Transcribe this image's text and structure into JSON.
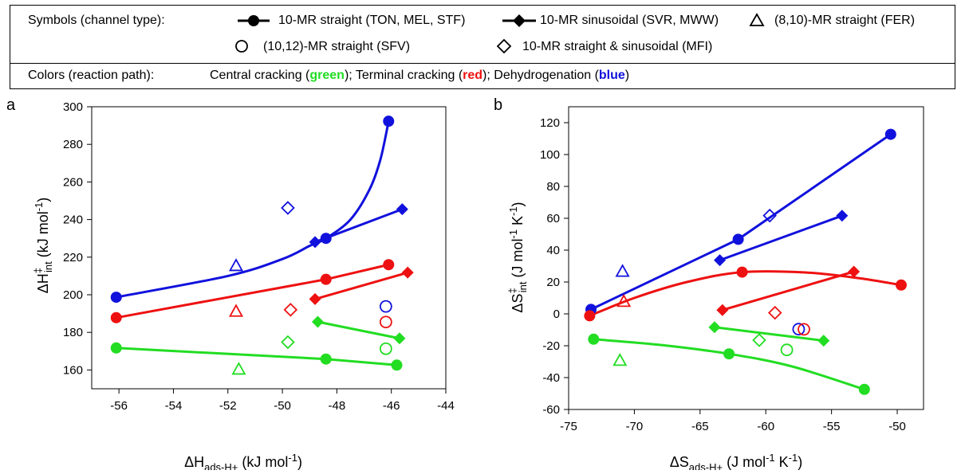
{
  "legend": {
    "symbols_label": "Symbols (channel type):",
    "symbols": [
      {
        "marker": "filled-circle-with-line",
        "label": "10-MR straight (TON, MEL, STF)"
      },
      {
        "marker": "filled-diamond-with-line",
        "label": "10-MR sinusoidal (SVR, MWW)"
      },
      {
        "marker": "open-triangle",
        "label": "(8,10)-MR straight (FER)"
      },
      {
        "marker": "open-circle",
        "label": "(10,12)-MR straight (SFV)"
      },
      {
        "marker": "open-diamond",
        "label": "10-MR straight & sinusoidal (MFI)"
      }
    ],
    "colors_label": "Colors (reaction path):",
    "colors_parts": {
      "p1": "Central cracking (",
      "green": "green",
      "p2": "); Terminal cracking (",
      "red": "red",
      "p3": "); Dehydrogenation (",
      "blue": "blue",
      "p4": ")"
    },
    "colors": {
      "green": "#22dd22",
      "red": "#ee1111",
      "blue": "#1111dd"
    }
  },
  "chart_data": [
    {
      "panel": "a",
      "type": "scatter",
      "ylabel": {
        "main": "ΔH",
        "sup": "‡",
        "sub": "int",
        "unit_open": " (kJ mol",
        "unit_sup": "-1",
        "unit_close": ")"
      },
      "xlabel": {
        "main": "ΔH",
        "sub": "ads-H+",
        "unit_open": " (kJ mol",
        "unit_sup": "-1",
        "unit_close": ")"
      },
      "xlim": [
        -57,
        -44
      ],
      "ylim": [
        150,
        300
      ],
      "xticks": [
        -56,
        -54,
        -52,
        -50,
        -48,
        -46,
        -44
      ],
      "yticks": [
        160,
        180,
        200,
        220,
        240,
        260,
        280,
        300
      ],
      "points": [
        {
          "color": "blue",
          "marker": "filled-circle",
          "x": -56.1,
          "y": 198.7
        },
        {
          "color": "blue",
          "marker": "filled-circle",
          "x": -48.4,
          "y": 230
        },
        {
          "color": "blue",
          "marker": "filled-circle",
          "x": -46.1,
          "y": 292.3
        },
        {
          "color": "blue",
          "marker": "filled-diamond",
          "x": -48.8,
          "y": 228
        },
        {
          "color": "blue",
          "marker": "filled-diamond",
          "x": -45.6,
          "y": 245.5
        },
        {
          "color": "blue",
          "marker": "open-triangle",
          "x": -51.7,
          "y": 215.5
        },
        {
          "color": "blue",
          "marker": "open-diamond",
          "x": -49.8,
          "y": 246.2
        },
        {
          "color": "blue",
          "marker": "open-circle",
          "x": -46.2,
          "y": 193.8
        },
        {
          "color": "red",
          "marker": "filled-circle",
          "x": -56.1,
          "y": 187.8
        },
        {
          "color": "red",
          "marker": "filled-circle",
          "x": -48.4,
          "y": 208.2
        },
        {
          "color": "red",
          "marker": "filled-circle",
          "x": -46.1,
          "y": 216
        },
        {
          "color": "red",
          "marker": "filled-diamond",
          "x": -48.8,
          "y": 197.7
        },
        {
          "color": "red",
          "marker": "filled-diamond",
          "x": -45.4,
          "y": 211.8
        },
        {
          "color": "red",
          "marker": "open-triangle",
          "x": -51.7,
          "y": 191.2
        },
        {
          "color": "red",
          "marker": "open-diamond",
          "x": -49.7,
          "y": 192
        },
        {
          "color": "red",
          "marker": "open-circle",
          "x": -46.2,
          "y": 185.5
        },
        {
          "color": "green",
          "marker": "filled-circle",
          "x": -56.1,
          "y": 171.7
        },
        {
          "color": "green",
          "marker": "filled-circle",
          "x": -48.4,
          "y": 165.8
        },
        {
          "color": "green",
          "marker": "filled-circle",
          "x": -45.8,
          "y": 162.6
        },
        {
          "color": "green",
          "marker": "filled-diamond",
          "x": -48.7,
          "y": 185.6
        },
        {
          "color": "green",
          "marker": "filled-diamond",
          "x": -45.7,
          "y": 176.8
        },
        {
          "color": "green",
          "marker": "open-triangle",
          "x": -51.6,
          "y": 160.4
        },
        {
          "color": "green",
          "marker": "open-diamond",
          "x": -49.8,
          "y": 174.8
        },
        {
          "color": "green",
          "marker": "open-circle",
          "x": -46.2,
          "y": 171.3
        }
      ],
      "lines": [
        {
          "color": "blue",
          "curve": true,
          "points": [
            [
              -56.1,
              198.7
            ],
            [
              -52,
              210
            ],
            [
              -50,
              219
            ],
            [
              -49,
              226
            ],
            [
              -48.4,
              230
            ],
            [
              -47.5,
              240
            ],
            [
              -46.8,
              256
            ],
            [
              -46.4,
              272
            ],
            [
              -46.1,
              292.3
            ]
          ]
        },
        {
          "color": "blue",
          "curve": false,
          "points": [
            [
              -48.8,
              228
            ],
            [
              -45.6,
              245.5
            ]
          ]
        },
        {
          "color": "red",
          "curve": false,
          "points": [
            [
              -56.1,
              187.8
            ],
            [
              -48.4,
              208.2
            ],
            [
              -46.1,
              216
            ]
          ]
        },
        {
          "color": "red",
          "curve": false,
          "points": [
            [
              -48.8,
              197.7
            ],
            [
              -45.4,
              211.8
            ]
          ]
        },
        {
          "color": "green",
          "curve": false,
          "points": [
            [
              -56.1,
              171.7
            ],
            [
              -48.4,
              165.8
            ],
            [
              -45.8,
              162.6
            ]
          ]
        },
        {
          "color": "green",
          "curve": false,
          "points": [
            [
              -48.7,
              185.6
            ],
            [
              -45.7,
              176.8
            ]
          ]
        }
      ]
    },
    {
      "panel": "b",
      "type": "scatter",
      "ylabel": {
        "main": "ΔS",
        "sup": "‡",
        "sub": "int",
        "unit_open": " (J mol",
        "unit_sup": "-1",
        "unit_mid": " K",
        "unit_sup2": "-1",
        "unit_close": ")"
      },
      "xlabel": {
        "main": "ΔS",
        "sub": "ads-H+",
        "unit_open": " (J mol",
        "unit_sup": "-1",
        "unit_mid": " K",
        "unit_sup2": "-1",
        "unit_close": ")"
      },
      "xlim": [
        -75,
        -48
      ],
      "ylim": [
        -60,
        130
      ],
      "xticks": [
        -75,
        -70,
        -65,
        -60,
        -55,
        -50
      ],
      "yticks": [
        -60,
        -40,
        -20,
        0,
        20,
        40,
        60,
        80,
        100,
        120
      ],
      "points": [
        {
          "color": "blue",
          "marker": "filled-circle",
          "x": -73.3,
          "y": 2.8
        },
        {
          "color": "blue",
          "marker": "filled-circle",
          "x": -62.1,
          "y": 46.8
        },
        {
          "color": "blue",
          "marker": "filled-circle",
          "x": -50.5,
          "y": 112.7
        },
        {
          "color": "blue",
          "marker": "filled-diamond",
          "x": -63.5,
          "y": 33.7
        },
        {
          "color": "blue",
          "marker": "filled-diamond",
          "x": -54.2,
          "y": 61.6
        },
        {
          "color": "blue",
          "marker": "open-triangle",
          "x": -70.9,
          "y": 26.7
        },
        {
          "color": "blue",
          "marker": "open-diamond",
          "x": -59.7,
          "y": 61.7
        },
        {
          "color": "blue",
          "marker": "open-circle",
          "x": -57.5,
          "y": -9.6
        },
        {
          "color": "red",
          "marker": "filled-circle",
          "x": -73.4,
          "y": -1.2
        },
        {
          "color": "red",
          "marker": "filled-circle",
          "x": -61.8,
          "y": 26.2
        },
        {
          "color": "red",
          "marker": "filled-circle",
          "x": -49.7,
          "y": 18.1
        },
        {
          "color": "red",
          "marker": "filled-diamond",
          "x": -63.3,
          "y": 2.4
        },
        {
          "color": "red",
          "marker": "filled-diamond",
          "x": -53.3,
          "y": 26.5
        },
        {
          "color": "red",
          "marker": "open-triangle",
          "x": -70.8,
          "y": 7.8
        },
        {
          "color": "red",
          "marker": "open-diamond",
          "x": -59.3,
          "y": 0.7
        },
        {
          "color": "red",
          "marker": "open-circle",
          "x": -57.1,
          "y": -9.7
        },
        {
          "color": "green",
          "marker": "filled-circle",
          "x": -73.1,
          "y": -15.9
        },
        {
          "color": "green",
          "marker": "filled-circle",
          "x": -62.8,
          "y": -25.1
        },
        {
          "color": "green",
          "marker": "filled-circle",
          "x": -52.5,
          "y": -47.4
        },
        {
          "color": "green",
          "marker": "filled-diamond",
          "x": -63.9,
          "y": -8.4
        },
        {
          "color": "green",
          "marker": "filled-diamond",
          "x": -55.6,
          "y": -16.8
        },
        {
          "color": "green",
          "marker": "open-triangle",
          "x": -71.1,
          "y": -29.2
        },
        {
          "color": "green",
          "marker": "open-diamond",
          "x": -60.5,
          "y": -16.5
        },
        {
          "color": "green",
          "marker": "open-circle",
          "x": -58.4,
          "y": -22.6
        }
      ],
      "lines": [
        {
          "color": "blue",
          "curve": false,
          "points": [
            [
              -73.3,
              2.8
            ],
            [
              -62.1,
              46.8
            ],
            [
              -50.5,
              112.7
            ]
          ]
        },
        {
          "color": "blue",
          "curve": false,
          "points": [
            [
              -63.5,
              33.7
            ],
            [
              -54.2,
              61.6
            ]
          ]
        },
        {
          "color": "red",
          "curve": true,
          "points": [
            [
              -73.4,
              -1.2
            ],
            [
              -70,
              10
            ],
            [
              -66,
              20
            ],
            [
              -61.8,
              26.2
            ],
            [
              -57,
              26
            ],
            [
              -53,
              22.5
            ],
            [
              -49.7,
              18.1
            ]
          ]
        },
        {
          "color": "red",
          "curve": false,
          "points": [
            [
              -63.3,
              2.4
            ],
            [
              -53.3,
              26.5
            ]
          ]
        },
        {
          "color": "green",
          "curve": true,
          "points": [
            [
              -73.1,
              -15.9
            ],
            [
              -68,
              -19.5
            ],
            [
              -62.8,
              -25.1
            ],
            [
              -58,
              -33
            ],
            [
              -52.5,
              -47.4
            ]
          ]
        },
        {
          "color": "green",
          "curve": false,
          "points": [
            [
              -63.9,
              -8.4
            ],
            [
              -55.6,
              -16.8
            ]
          ]
        }
      ]
    }
  ]
}
